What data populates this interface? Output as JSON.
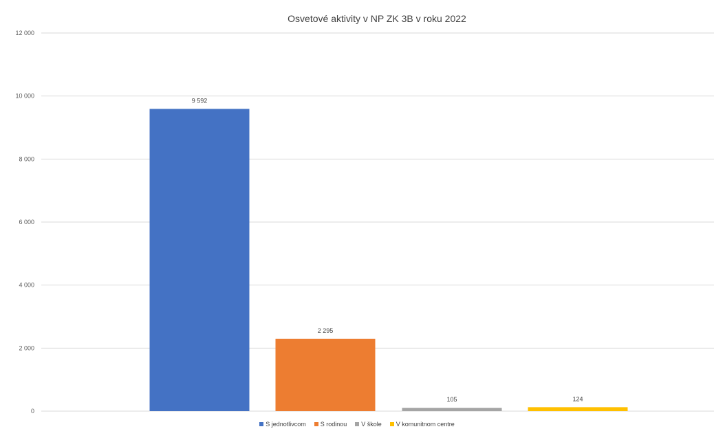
{
  "chart_data": {
    "type": "bar",
    "title": "Osvetové aktivity v NP ZK 3B v roku 2022",
    "categories": [
      "S jednotlivcom",
      "S rodinou",
      "V škole",
      "V komunitnom centre"
    ],
    "series": [
      {
        "name": "S jednotlivcom",
        "value": 9592,
        "label": "9 592",
        "color": "#4472C4"
      },
      {
        "name": "S rodinou",
        "value": 2295,
        "label": "2 295",
        "color": "#ED7D31"
      },
      {
        "name": "V škole",
        "value": 105,
        "label": "105",
        "color": "#A5A5A5"
      },
      {
        "name": "V komunitnom centre",
        "value": 124,
        "label": "124",
        "color": "#FFC000"
      }
    ],
    "yaxis": {
      "min": 0,
      "max": 12000,
      "step": 2000,
      "tick_labels": [
        "0",
        "2 000",
        "4 000",
        "6 000",
        "8 000",
        "10 000",
        "12 000"
      ]
    },
    "grid": true,
    "legend_position": "bottom"
  }
}
